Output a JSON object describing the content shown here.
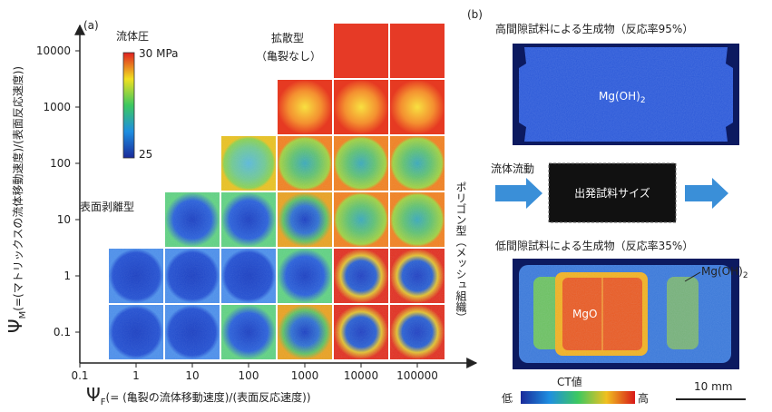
{
  "panel_a": {
    "label": "(a)",
    "y_axis_label": {
      "symbol": "Ψ",
      "subscript": "M",
      "text": "(=(マトリックスの流体移動速度)/(表面反応速度))"
    },
    "x_axis_label": {
      "symbol": "Ψ",
      "subscript": "F",
      "text": "(= (亀裂の流体移動速度)/(表面反応速度))"
    },
    "x_ticks": [
      0.1,
      1,
      10,
      100,
      1000,
      10000,
      100000
    ],
    "y_ticks": [
      0.1,
      1,
      10,
      100,
      1000,
      10000
    ],
    "colorbar": {
      "title": "流体圧",
      "max_label": "30 MPa",
      "min_label": "25"
    },
    "annotations": [
      "拡散型",
      "（亀裂なし）",
      "表面剥離型",
      "ポリゴン型（メッシュ組織）"
    ]
  },
  "panel_b": {
    "label": "(b)",
    "top_title": "高間隙試料による生成物（反応率95%）",
    "top_phase": {
      "text": "Mg(OH)",
      "subscript": "2"
    },
    "flow_label": "流体流動",
    "start_box": "出発試料サイズ",
    "bottom_title": "低間隙試料による生成物（反応率35%）",
    "bottom_core": "MgO",
    "bottom_rim": {
      "text": "Mg(OH)",
      "subscript": "2"
    },
    "ct_title": "CT値",
    "ct_low": "低",
    "ct_high": "高",
    "scale_bar": "10 mm"
  }
}
